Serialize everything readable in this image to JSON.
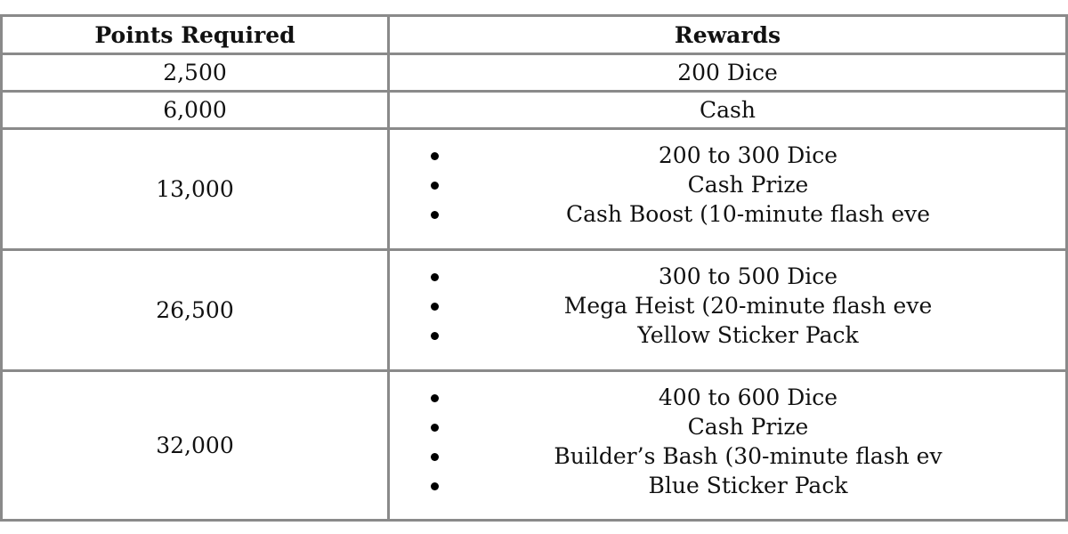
{
  "table": {
    "headers": [
      "Points Required",
      "Rewards"
    ],
    "rows": [
      {
        "points": "2,500",
        "rewards": "200 Dice"
      },
      {
        "points": "6,000",
        "rewards": "Cash"
      },
      {
        "points": "13,000",
        "rewards": [
          "200 to 300 Dice",
          "Cash Prize",
          "Cash Boost (10-minute flash eve"
        ]
      },
      {
        "points": "26,500",
        "rewards": [
          "300 to 500 Dice",
          "Mega Heist (20-minute flash eve",
          "Yellow Sticker Pack"
        ]
      },
      {
        "points": "32,000",
        "rewards": [
          "400 to 600 Dice",
          "Cash Prize",
          "Builder’s Bash (30-minute flash ev",
          "Blue Sticker Pack"
        ]
      }
    ]
  }
}
